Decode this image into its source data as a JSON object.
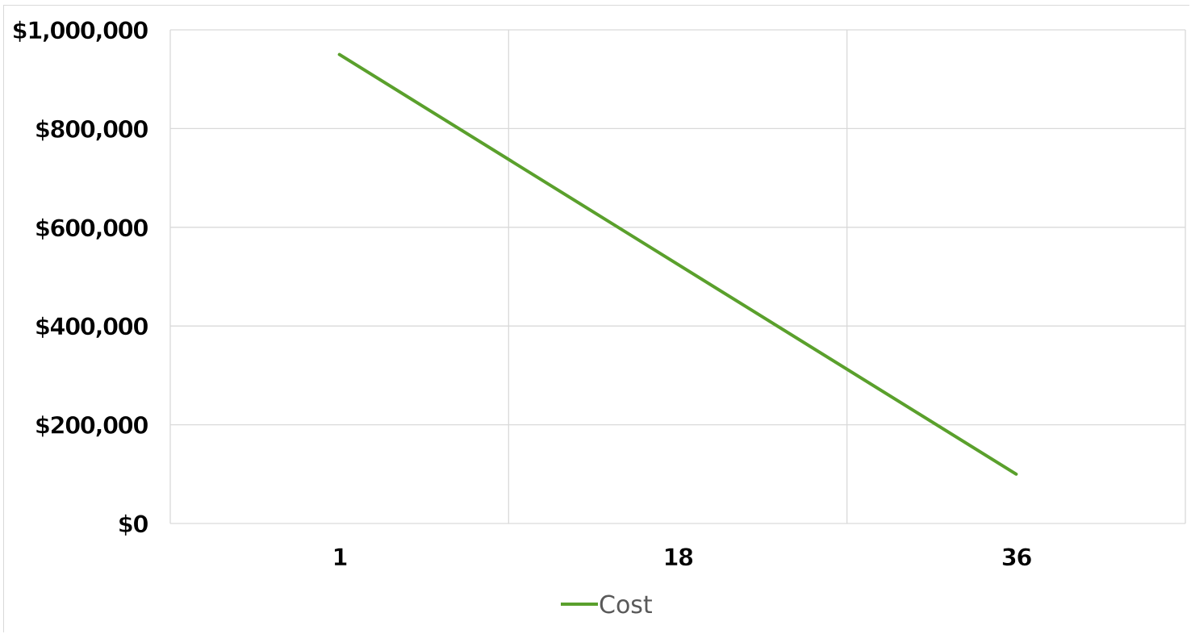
{
  "chart_data": {
    "type": "line",
    "title": "",
    "xlabel": "",
    "ylabel": "",
    "categories": [
      "1",
      "18",
      "36"
    ],
    "series": [
      {
        "name": "Cost",
        "x": [
          1,
          36
        ],
        "values": [
          950000,
          100000
        ],
        "color": "#5aa02c"
      }
    ],
    "ylim": [
      0,
      1000000
    ],
    "yticks": [
      0,
      200000,
      400000,
      600000,
      800000,
      1000000
    ],
    "ytick_labels": [
      "$0",
      "$200,000",
      "$400,000",
      "$600,000",
      "$800,000",
      "$1,000,000"
    ],
    "xtick_labels": [
      "1",
      "18",
      "36"
    ],
    "grid": true,
    "gridline_color": "#d9d9d9",
    "legend": {
      "position": "bottom",
      "label": "Cost"
    }
  }
}
